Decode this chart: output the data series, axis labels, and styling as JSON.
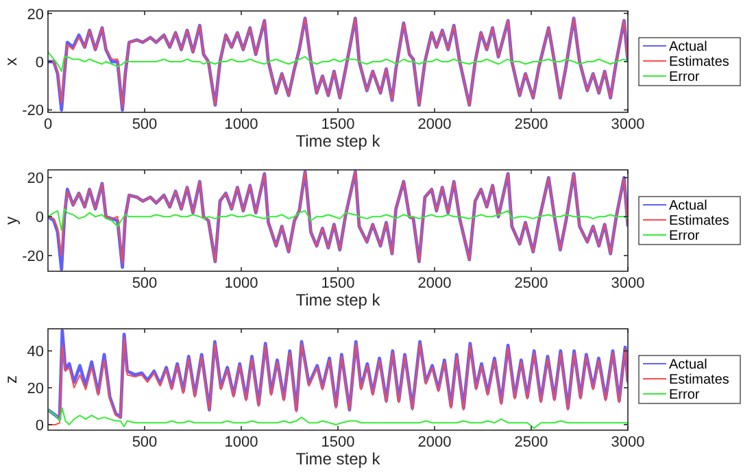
{
  "chart_data": [
    {
      "type": "line",
      "xlabel": "Time step k",
      "ylabel": "x",
      "xlim": [
        0,
        3000
      ],
      "ylim": [
        -21,
        21
      ],
      "xticks": [
        0,
        500,
        1000,
        1500,
        2000,
        2500,
        3000
      ],
      "yticks": [
        -20,
        0,
        20
      ],
      "legend": "right",
      "x": [
        0,
        30,
        50,
        70,
        85,
        100,
        130,
        160,
        190,
        215,
        245,
        280,
        300,
        330,
        360,
        385,
        400,
        420,
        460,
        490,
        530,
        560,
        600,
        630,
        660,
        690,
        720,
        750,
        785,
        805,
        830,
        865,
        890,
        920,
        950,
        980,
        1010,
        1045,
        1075,
        1120,
        1140,
        1180,
        1210,
        1245,
        1275,
        1300,
        1330,
        1360,
        1390,
        1420,
        1450,
        1480,
        1510,
        1540,
        1590,
        1610,
        1650,
        1680,
        1720,
        1750,
        1780,
        1800,
        1840,
        1870,
        1890,
        1920,
        1950,
        1985,
        2010,
        2040,
        2070,
        2100,
        2130,
        2180,
        2210,
        2240,
        2270,
        2300,
        2330,
        2380,
        2400,
        2440,
        2470,
        2510,
        2540,
        2590,
        2620,
        2650,
        2680,
        2720,
        2750,
        2790,
        2820,
        2850,
        2880,
        2910,
        2940,
        2980,
        3000
      ],
      "series": [
        {
          "name": "Actual",
          "color": "#5f5fff",
          "values": [
            0,
            0,
            -5,
            -20,
            -5,
            8,
            6,
            11,
            6,
            13,
            5,
            14,
            5,
            0,
            0,
            -20,
            -5,
            8,
            9,
            8,
            10,
            8,
            11,
            6,
            12,
            5,
            13,
            4,
            15,
            3,
            0,
            -18,
            0,
            11,
            6,
            12,
            5,
            14,
            3,
            17,
            0,
            -13,
            -5,
            -14,
            -3,
            5,
            18,
            0,
            -13,
            -6,
            -14,
            -4,
            -15,
            -3,
            18,
            0,
            -12,
            -4,
            -13,
            -3,
            -16,
            -3,
            16,
            3,
            1,
            -18,
            0,
            12,
            6,
            13,
            5,
            15,
            0,
            -18,
            0,
            12,
            5,
            14,
            2,
            17,
            0,
            -14,
            -5,
            -15,
            -2,
            14,
            0,
            -15,
            -2,
            18,
            0,
            -12,
            -5,
            -13,
            -4,
            -15,
            0,
            17,
            0
          ]
        },
        {
          "name": "Estimates",
          "color": "#ff4a4a",
          "values": [
            0,
            0,
            -4,
            -17,
            -4,
            7,
            5,
            10,
            6,
            13,
            5,
            14,
            5,
            1,
            1,
            -19,
            -5,
            8,
            9,
            8,
            10,
            8,
            11,
            6,
            12,
            5,
            13,
            4,
            15,
            3,
            0,
            -18,
            0,
            11,
            6,
            12,
            5,
            14,
            3,
            17,
            0,
            -13,
            -5,
            -14,
            -3,
            5,
            18,
            0,
            -13,
            -6,
            -14,
            -4,
            -15,
            -3,
            18,
            0,
            -12,
            -4,
            -13,
            -3,
            -16,
            -3,
            16,
            3,
            1,
            -18,
            0,
            12,
            6,
            13,
            5,
            15,
            0,
            -18,
            0,
            12,
            5,
            14,
            2,
            17,
            0,
            -14,
            -5,
            -15,
            -2,
            14,
            0,
            -15,
            -2,
            18,
            0,
            -12,
            -5,
            -13,
            -4,
            -15,
            0,
            17,
            0
          ]
        },
        {
          "name": "Error",
          "color": "#33ee33",
          "values": [
            4,
            1,
            -1,
            -4,
            2,
            2,
            1,
            1,
            0,
            1,
            0,
            -1,
            0,
            -1,
            -2,
            -1,
            0,
            0,
            0,
            0,
            0,
            0,
            1,
            0,
            0,
            0,
            1,
            0,
            0,
            -1,
            0,
            -1,
            0,
            0,
            1,
            0,
            0,
            1,
            0,
            -1,
            0,
            1,
            0,
            -1,
            0,
            1,
            2,
            0,
            -1,
            0,
            0,
            1,
            0,
            1,
            1,
            0,
            -1,
            0,
            0,
            1,
            0,
            -1,
            1,
            0,
            0,
            -1,
            0,
            0,
            1,
            0,
            0,
            1,
            0,
            -1,
            0,
            0,
            1,
            0,
            -1,
            1,
            0,
            0,
            -1,
            0,
            0,
            1,
            0,
            0,
            1,
            0,
            -1,
            0,
            0,
            1,
            0,
            -1,
            0,
            1,
            0
          ]
        }
      ]
    },
    {
      "type": "line",
      "xlabel": "Time step k",
      "ylabel": "y",
      "xlim": [
        0,
        3000
      ],
      "ylim": [
        -28,
        24
      ],
      "xticks": [
        500,
        1000,
        1500,
        2000,
        2500,
        3000
      ],
      "yticks": [
        -20,
        0,
        20
      ],
      "legend": "right",
      "x": [
        0,
        30,
        50,
        70,
        85,
        100,
        130,
        160,
        190,
        215,
        245,
        280,
        300,
        330,
        360,
        385,
        400,
        420,
        460,
        490,
        530,
        560,
        600,
        630,
        660,
        690,
        720,
        750,
        785,
        805,
        830,
        865,
        890,
        920,
        950,
        980,
        1010,
        1045,
        1075,
        1120,
        1140,
        1180,
        1210,
        1245,
        1275,
        1300,
        1330,
        1360,
        1390,
        1420,
        1450,
        1480,
        1510,
        1540,
        1590,
        1610,
        1650,
        1680,
        1720,
        1750,
        1780,
        1800,
        1840,
        1870,
        1890,
        1920,
        1950,
        1985,
        2010,
        2040,
        2070,
        2100,
        2130,
        2180,
        2210,
        2240,
        2270,
        2300,
        2330,
        2380,
        2400,
        2440,
        2470,
        2510,
        2540,
        2590,
        2620,
        2650,
        2680,
        2720,
        2750,
        2790,
        2820,
        2850,
        2880,
        2910,
        2940,
        2980,
        3000
      ],
      "series": [
        {
          "name": "Actual",
          "color": "#5f5fff",
          "values": [
            0,
            -2,
            -8,
            -27,
            0,
            14,
            6,
            12,
            5,
            14,
            4,
            17,
            0,
            -1,
            -2,
            -26,
            0,
            11,
            10,
            8,
            10,
            7,
            11,
            5,
            13,
            4,
            15,
            2,
            18,
            0,
            -2,
            -23,
            8,
            12,
            4,
            15,
            3,
            16,
            2,
            22,
            -3,
            -15,
            -5,
            -18,
            -2,
            3,
            23,
            -8,
            -15,
            -6,
            -16,
            -4,
            -17,
            1,
            23,
            -5,
            -13,
            -4,
            -15,
            -3,
            -19,
            4,
            18,
            0,
            -1,
            -23,
            10,
            14,
            3,
            15,
            2,
            18,
            -1,
            -22,
            8,
            14,
            5,
            16,
            0,
            22,
            -5,
            -14,
            -3,
            -18,
            -2,
            20,
            0,
            -17,
            -2,
            22,
            -5,
            -13,
            -5,
            -15,
            -4,
            -19,
            0,
            20,
            -5
          ]
        },
        {
          "name": "Estimates",
          "color": "#ff4a4a",
          "values": [
            0,
            -1,
            -6,
            -20,
            2,
            13,
            6,
            12,
            5,
            14,
            4,
            17,
            0,
            -1,
            0,
            -24,
            0,
            11,
            10,
            8,
            10,
            7,
            11,
            5,
            13,
            4,
            15,
            2,
            18,
            0,
            -2,
            -23,
            8,
            12,
            4,
            15,
            3,
            16,
            2,
            22,
            -3,
            -15,
            -5,
            -18,
            -2,
            3,
            23,
            -8,
            -15,
            -6,
            -16,
            -4,
            -17,
            1,
            23,
            -5,
            -13,
            -4,
            -15,
            -3,
            -19,
            4,
            18,
            0,
            -1,
            -23,
            10,
            14,
            3,
            15,
            2,
            18,
            -1,
            -22,
            8,
            14,
            5,
            16,
            0,
            22,
            -5,
            -14,
            -3,
            -18,
            -2,
            20,
            0,
            -17,
            -2,
            22,
            -5,
            -13,
            -5,
            -15,
            -4,
            -19,
            0,
            20,
            -5
          ]
        },
        {
          "name": "Error",
          "color": "#33ee33",
          "values": [
            0,
            2,
            3,
            -7,
            4,
            2,
            1,
            -1,
            0,
            2,
            0,
            1,
            -1,
            -2,
            -5,
            -1,
            1,
            0,
            0,
            0,
            0,
            1,
            0,
            0,
            1,
            0,
            0,
            1,
            0,
            -1,
            0,
            -1,
            0,
            0,
            1,
            0,
            0,
            1,
            0,
            -1,
            0,
            0,
            1,
            -1,
            0,
            2,
            3,
            -2,
            0,
            0,
            1,
            0,
            -1,
            2,
            1,
            0,
            -1,
            0,
            0,
            1,
            0,
            -1,
            1,
            0,
            0,
            -1,
            0,
            1,
            0,
            0,
            1,
            0,
            0,
            -1,
            0,
            1,
            0,
            0,
            1,
            3,
            -1,
            0,
            0,
            -1,
            0,
            1,
            0,
            0,
            1,
            0,
            0,
            0,
            -1,
            0,
            0,
            1,
            0,
            0,
            -1
          ]
        }
      ]
    },
    {
      "type": "line",
      "xlabel": "Time step k",
      "ylabel": "z",
      "xlim": [
        0,
        3000
      ],
      "ylim": [
        -3,
        52
      ],
      "xticks": [
        500,
        1000,
        1500,
        2000,
        2500,
        3000
      ],
      "yticks": [
        0,
        20,
        40
      ],
      "legend": "right",
      "x": [
        0,
        40,
        60,
        74,
        90,
        110,
        135,
        165,
        195,
        226,
        260,
        291,
        320,
        350,
        375,
        394,
        410,
        450,
        485,
        515,
        549,
        580,
        612,
        640,
        669,
        700,
        728,
        760,
        795,
        835,
        863,
        895,
        928,
        960,
        992,
        1025,
        1055,
        1090,
        1125,
        1155,
        1186,
        1220,
        1251,
        1285,
        1312,
        1350,
        1393,
        1420,
        1456,
        1490,
        1519,
        1560,
        1593,
        1620,
        1652,
        1680,
        1715,
        1750,
        1783,
        1815,
        1846,
        1885,
        1924,
        1955,
        1988,
        2020,
        2051,
        2085,
        2114,
        2150,
        2184,
        2215,
        2243,
        2275,
        2310,
        2345,
        2380,
        2415,
        2448,
        2480,
        2515,
        2550,
        2585,
        2620,
        2652,
        2690,
        2722,
        2755,
        2785,
        2820,
        2849,
        2885,
        2922,
        2955,
        2986,
        3000
      ],
      "series": [
        {
          "name": "Actual",
          "color": "#5f5fff",
          "values": [
            8,
            5,
            3,
            51,
            30,
            33,
            23,
            32,
            21,
            34,
            17,
            38,
            15,
            6,
            4,
            49,
            29,
            27,
            28,
            24,
            29,
            22,
            31,
            20,
            33,
            18,
            37,
            16,
            38,
            8,
            45,
            20,
            31,
            16,
            33,
            14,
            37,
            11,
            44,
            17,
            35,
            14,
            40,
            8,
            45,
            22,
            32,
            20,
            36,
            10,
            38,
            8,
            45,
            20,
            33,
            17,
            36,
            13,
            40,
            13,
            38,
            9,
            45,
            23,
            32,
            19,
            35,
            10,
            38,
            9,
            44,
            20,
            33,
            17,
            36,
            12,
            43,
            15,
            35,
            15,
            40,
            13,
            37,
            14,
            40,
            9,
            40,
            15,
            38,
            20,
            36,
            14,
            40,
            13,
            42,
            23
          ]
        },
        {
          "name": "Estimates",
          "color": "#ff4a4a",
          "values": [
            0,
            0,
            1,
            43,
            29,
            31,
            20,
            27,
            19,
            31,
            16,
            35,
            14,
            5,
            4,
            47,
            27,
            26,
            27,
            23,
            28,
            21,
            30,
            19,
            32,
            17,
            36,
            15,
            37,
            8,
            44,
            19,
            30,
            15,
            32,
            13,
            36,
            10,
            43,
            16,
            34,
            13,
            39,
            7,
            44,
            21,
            31,
            19,
            35,
            9,
            37,
            8,
            44,
            19,
            32,
            16,
            35,
            12,
            39,
            12,
            37,
            8,
            44,
            22,
            31,
            18,
            34,
            9,
            37,
            8,
            43,
            19,
            32,
            16,
            35,
            11,
            42,
            14,
            34,
            14,
            39,
            12,
            36,
            13,
            39,
            8,
            39,
            14,
            37,
            19,
            35,
            13,
            39,
            12,
            41,
            22
          ]
        },
        {
          "name": "Error",
          "color": "#33ee33",
          "values": [
            8,
            5,
            2,
            9,
            2,
            0,
            3,
            5,
            3,
            5,
            3,
            4,
            3,
            2,
            2,
            -1,
            2,
            1,
            1,
            1,
            1,
            1,
            1,
            2,
            1,
            1,
            2,
            1,
            1,
            1,
            1,
            1,
            2,
            1,
            1,
            1,
            2,
            1,
            1,
            1,
            1,
            2,
            1,
            2,
            4,
            1,
            1,
            2,
            1,
            0,
            1,
            2,
            2,
            1,
            1,
            1,
            1,
            1,
            1,
            1,
            1,
            1,
            1,
            2,
            1,
            1,
            1,
            1,
            1,
            2,
            1,
            1,
            1,
            2,
            1,
            3,
            1,
            1,
            1,
            1,
            -2,
            1,
            1,
            1,
            2,
            1,
            1,
            1,
            1,
            1,
            1,
            1,
            1,
            1,
            1,
            1
          ]
        }
      ]
    }
  ]
}
